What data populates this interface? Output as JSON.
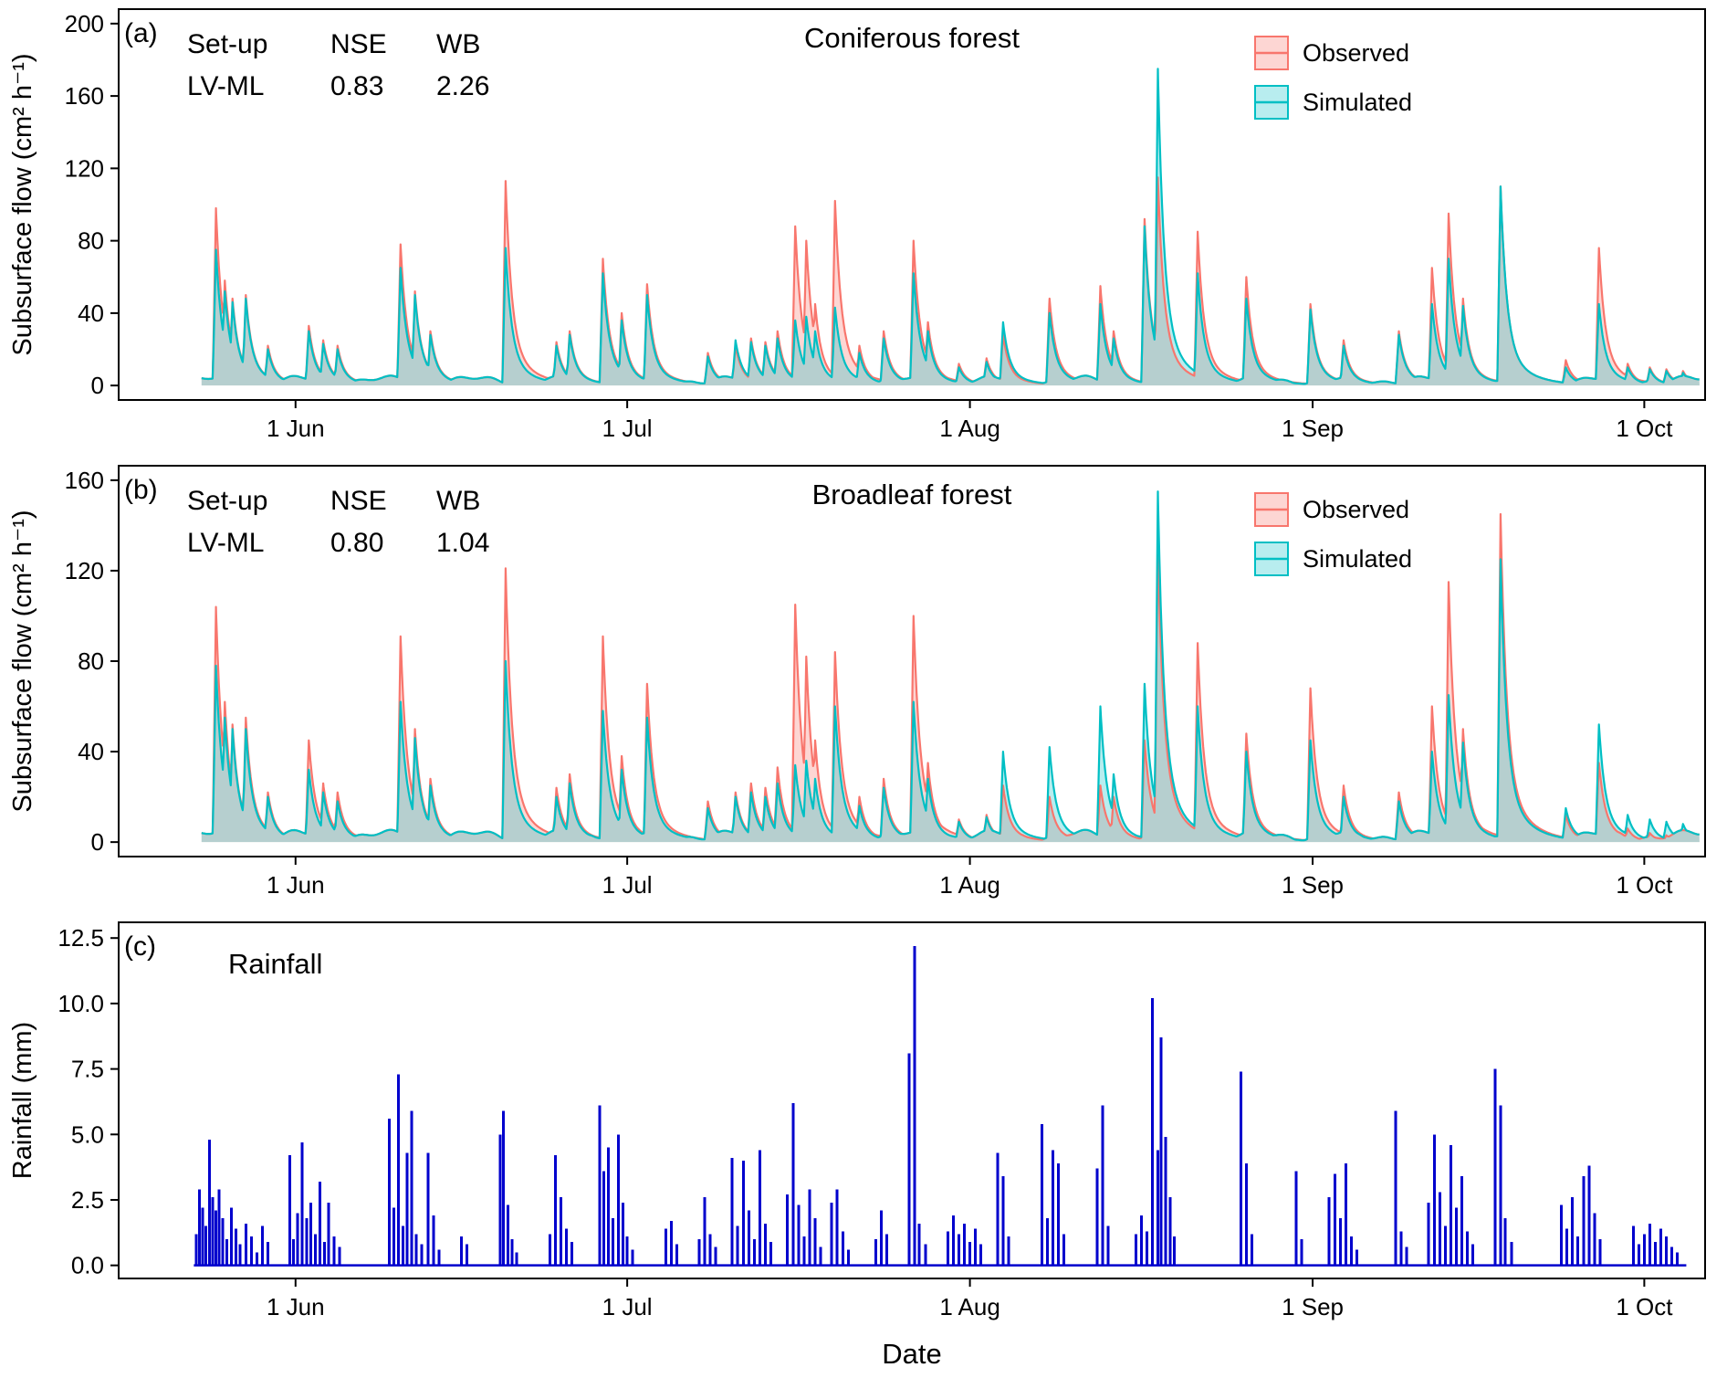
{
  "figure": {
    "background": "#ffffff"
  },
  "x_axis": {
    "domain": [
      0,
      143.5
    ],
    "tick_days": [
      16,
      46,
      77,
      108,
      138
    ],
    "tick_labels": [
      "1 Jun",
      "1 Jul",
      "1 Aug",
      "1 Sep",
      "1 Oct"
    ]
  },
  "colors": {
    "observed": "#F8766D",
    "observed_fill": "rgba(248,118,109,0.30)",
    "simulated": "#00BFC4",
    "simulated_fill": "rgba(0,191,196,0.28)",
    "rain": "#0000CD",
    "axis": "#000000"
  },
  "chart_data": [
    {
      "id": "a",
      "type": "line",
      "panel_label": "(a)",
      "title": "Coniferous forest",
      "ylabel": "Subsurface flow (cm² h⁻¹)",
      "ylim": [
        0,
        200
      ],
      "yticks": [
        0,
        40,
        80,
        120,
        160,
        200
      ],
      "stats_header": [
        "Set-up",
        "NSE",
        "WB"
      ],
      "stats_row": [
        "LV-ML",
        "0.83",
        "2.26"
      ],
      "legend": [
        {
          "name": "Observed",
          "color": "#F8766D",
          "fill": "rgba(248,118,109,0.30)"
        },
        {
          "name": "Simulated",
          "color": "#00BFC4",
          "fill": "rgba(0,191,196,0.28)"
        }
      ],
      "series_range": [
        7.5,
        143.0
      ],
      "events": [
        [
          8.8,
          98,
          75
        ],
        [
          9.6,
          58,
          52
        ],
        [
          10.3,
          48,
          46
        ],
        [
          11.5,
          50,
          48
        ],
        [
          13.5,
          22,
          20
        ],
        [
          17.2,
          33,
          30
        ],
        [
          18.5,
          25,
          23
        ],
        [
          19.8,
          22,
          20
        ],
        [
          25.5,
          78,
          65
        ],
        [
          26.8,
          52,
          50
        ],
        [
          28.2,
          30,
          28
        ],
        [
          35.0,
          113,
          76
        ],
        [
          39.6,
          24,
          22
        ],
        [
          40.8,
          30,
          28
        ],
        [
          43.8,
          70,
          62
        ],
        [
          45.5,
          40,
          36
        ],
        [
          47.8,
          56,
          50
        ],
        [
          53.3,
          18,
          16
        ],
        [
          55.8,
          22,
          25
        ],
        [
          57.2,
          26,
          24
        ],
        [
          58.5,
          24,
          22
        ],
        [
          59.6,
          30,
          26
        ],
        [
          61.2,
          88,
          36
        ],
        [
          62.2,
          80,
          38
        ],
        [
          63.0,
          45,
          30
        ],
        [
          64.8,
          102,
          43
        ],
        [
          67.0,
          22,
          18
        ],
        [
          69.2,
          30,
          26
        ],
        [
          71.9,
          80,
          62
        ],
        [
          73.2,
          35,
          30
        ],
        [
          76.0,
          12,
          10
        ],
        [
          78.5,
          15,
          13
        ],
        [
          80.0,
          28,
          35
        ],
        [
          84.2,
          48,
          40
        ],
        [
          88.8,
          55,
          45
        ],
        [
          90.0,
          30,
          26
        ],
        [
          92.8,
          92,
          88
        ],
        [
          94.0,
          115,
          175
        ],
        [
          97.6,
          85,
          62
        ],
        [
          102.0,
          60,
          48
        ],
        [
          107.8,
          45,
          42
        ],
        [
          110.8,
          25,
          22
        ],
        [
          115.8,
          30,
          28
        ],
        [
          118.8,
          65,
          45
        ],
        [
          120.3,
          95,
          70
        ],
        [
          121.6,
          48,
          44
        ],
        [
          125.0,
          110,
          110
        ],
        [
          130.9,
          14,
          10
        ],
        [
          133.9,
          76,
          45
        ],
        [
          136.5,
          12,
          10
        ],
        [
          138.5,
          10,
          9
        ],
        [
          140.0,
          9,
          8
        ],
        [
          141.5,
          8,
          7
        ]
      ]
    },
    {
      "id": "b",
      "type": "line",
      "panel_label": "(b)",
      "title": "Broadleaf forest",
      "ylabel": "Subsurface flow (cm² h⁻¹)",
      "ylim": [
        0,
        160
      ],
      "yticks": [
        0,
        40,
        80,
        120,
        160
      ],
      "stats_header": [
        "Set-up",
        "NSE",
        "WB"
      ],
      "stats_row": [
        "LV-ML",
        "0.80",
        "1.04"
      ],
      "legend": [
        {
          "name": "Observed",
          "color": "#F8766D",
          "fill": "rgba(248,118,109,0.30)"
        },
        {
          "name": "Simulated",
          "color": "#00BFC4",
          "fill": "rgba(0,191,196,0.28)"
        }
      ],
      "series_range": [
        7.5,
        143.0
      ],
      "events": [
        [
          8.8,
          104,
          78
        ],
        [
          9.6,
          62,
          55
        ],
        [
          10.3,
          52,
          50
        ],
        [
          11.5,
          55,
          50
        ],
        [
          13.5,
          22,
          20
        ],
        [
          17.2,
          45,
          32
        ],
        [
          18.5,
          26,
          22
        ],
        [
          19.8,
          22,
          18
        ],
        [
          25.5,
          91,
          62
        ],
        [
          26.8,
          50,
          46
        ],
        [
          28.2,
          28,
          25
        ],
        [
          35.0,
          121,
          80
        ],
        [
          39.6,
          24,
          20
        ],
        [
          40.8,
          30,
          26
        ],
        [
          43.8,
          91,
          58
        ],
        [
          45.5,
          38,
          32
        ],
        [
          47.8,
          70,
          55
        ],
        [
          53.3,
          18,
          15
        ],
        [
          55.8,
          22,
          20
        ],
        [
          57.2,
          26,
          22
        ],
        [
          58.5,
          24,
          20
        ],
        [
          59.6,
          33,
          26
        ],
        [
          61.2,
          105,
          34
        ],
        [
          62.2,
          82,
          36
        ],
        [
          63.0,
          45,
          28
        ],
        [
          64.8,
          84,
          60
        ],
        [
          67.0,
          20,
          16
        ],
        [
          69.2,
          28,
          24
        ],
        [
          71.9,
          100,
          62
        ],
        [
          73.2,
          35,
          28
        ],
        [
          76.0,
          10,
          9
        ],
        [
          78.5,
          12,
          11
        ],
        [
          80.0,
          25,
          40
        ],
        [
          84.2,
          20,
          42
        ],
        [
          88.8,
          25,
          60
        ],
        [
          90.0,
          20,
          30
        ],
        [
          92.8,
          45,
          70
        ],
        [
          94.0,
          130,
          155
        ],
        [
          97.6,
          88,
          60
        ],
        [
          102.0,
          48,
          40
        ],
        [
          107.8,
          68,
          45
        ],
        [
          110.8,
          25,
          20
        ],
        [
          115.8,
          22,
          18
        ],
        [
          118.8,
          60,
          40
        ],
        [
          120.3,
          115,
          65
        ],
        [
          121.6,
          50,
          44
        ],
        [
          125.0,
          145,
          125
        ],
        [
          130.9,
          12,
          15
        ],
        [
          133.9,
          35,
          52
        ],
        [
          136.5,
          6,
          12
        ],
        [
          138.5,
          4,
          10
        ],
        [
          140.0,
          3,
          9
        ],
        [
          141.5,
          3,
          8
        ]
      ]
    },
    {
      "id": "c",
      "type": "bar",
      "panel_label": "(c)",
      "title": "Rainfall",
      "ylabel": "Rainfall (mm)",
      "xlabel": "Date",
      "ylim": [
        0,
        12.5
      ],
      "yticks": [
        "0.0",
        "2.5",
        "5.0",
        "7.5",
        "10.0",
        "12.5"
      ],
      "bar_color": "#0000CD",
      "baseline_range": [
        6.8,
        141.8
      ],
      "bars": [
        [
          7.0,
          1.2
        ],
        [
          7.3,
          2.9
        ],
        [
          7.6,
          2.2
        ],
        [
          7.9,
          1.5
        ],
        [
          8.2,
          4.8
        ],
        [
          8.5,
          2.6
        ],
        [
          8.8,
          2.1
        ],
        [
          9.1,
          2.9
        ],
        [
          9.4,
          1.8
        ],
        [
          9.8,
          1.0
        ],
        [
          10.2,
          2.2
        ],
        [
          10.6,
          1.4
        ],
        [
          11.0,
          0.8
        ],
        [
          11.5,
          1.6
        ],
        [
          12.0,
          1.1
        ],
        [
          12.5,
          0.5
        ],
        [
          13.0,
          1.5
        ],
        [
          13.5,
          0.9
        ],
        [
          15.5,
          4.2
        ],
        [
          15.8,
          1.0
        ],
        [
          16.2,
          2.0
        ],
        [
          16.6,
          4.7
        ],
        [
          17.0,
          1.8
        ],
        [
          17.4,
          2.4
        ],
        [
          17.8,
          1.2
        ],
        [
          18.2,
          3.2
        ],
        [
          18.6,
          0.9
        ],
        [
          19.0,
          2.4
        ],
        [
          19.5,
          1.1
        ],
        [
          20.0,
          0.7
        ],
        [
          24.5,
          5.6
        ],
        [
          24.9,
          2.2
        ],
        [
          25.3,
          7.3
        ],
        [
          25.7,
          1.5
        ],
        [
          26.1,
          4.3
        ],
        [
          26.5,
          5.9
        ],
        [
          26.9,
          1.2
        ],
        [
          27.4,
          0.8
        ],
        [
          28.0,
          4.3
        ],
        [
          28.5,
          1.9
        ],
        [
          29.0,
          0.6
        ],
        [
          31.0,
          1.1
        ],
        [
          31.5,
          0.8
        ],
        [
          34.5,
          5.0
        ],
        [
          34.8,
          5.9
        ],
        [
          35.2,
          2.3
        ],
        [
          35.6,
          1.0
        ],
        [
          36.0,
          0.5
        ],
        [
          39.0,
          1.2
        ],
        [
          39.5,
          4.2
        ],
        [
          40.0,
          2.6
        ],
        [
          40.5,
          1.4
        ],
        [
          41.0,
          0.9
        ],
        [
          43.5,
          6.1
        ],
        [
          43.9,
          3.6
        ],
        [
          44.3,
          4.5
        ],
        [
          44.7,
          1.8
        ],
        [
          45.2,
          5.0
        ],
        [
          45.6,
          2.4
        ],
        [
          46.0,
          1.1
        ],
        [
          46.5,
          0.6
        ],
        [
          49.5,
          1.4
        ],
        [
          50.0,
          1.7
        ],
        [
          50.5,
          0.8
        ],
        [
          52.5,
          1.0
        ],
        [
          53.0,
          2.6
        ],
        [
          53.5,
          1.2
        ],
        [
          54.0,
          0.7
        ],
        [
          55.5,
          4.1
        ],
        [
          56.0,
          1.5
        ],
        [
          56.5,
          4.0
        ],
        [
          57.0,
          2.1
        ],
        [
          57.5,
          1.0
        ],
        [
          58.0,
          4.4
        ],
        [
          58.5,
          1.6
        ],
        [
          59.0,
          0.9
        ],
        [
          60.5,
          2.7
        ],
        [
          61.0,
          6.2
        ],
        [
          61.5,
          2.3
        ],
        [
          62.0,
          1.1
        ],
        [
          62.5,
          2.9
        ],
        [
          63.0,
          1.8
        ],
        [
          63.5,
          0.7
        ],
        [
          64.5,
          2.4
        ],
        [
          65.0,
          2.9
        ],
        [
          65.5,
          1.3
        ],
        [
          66.0,
          0.6
        ],
        [
          68.5,
          1.0
        ],
        [
          69.0,
          2.1
        ],
        [
          69.5,
          1.2
        ],
        [
          71.5,
          8.1
        ],
        [
          72.0,
          12.2
        ],
        [
          72.4,
          1.6
        ],
        [
          73.0,
          0.8
        ],
        [
          75.0,
          1.3
        ],
        [
          75.5,
          1.9
        ],
        [
          76.0,
          1.2
        ],
        [
          76.5,
          1.6
        ],
        [
          77.0,
          0.9
        ],
        [
          77.5,
          1.4
        ],
        [
          78.0,
          0.8
        ],
        [
          79.5,
          4.3
        ],
        [
          80.0,
          3.4
        ],
        [
          80.5,
          1.1
        ],
        [
          83.5,
          5.4
        ],
        [
          84.0,
          1.8
        ],
        [
          84.5,
          4.4
        ],
        [
          85.0,
          3.9
        ],
        [
          85.5,
          1.2
        ],
        [
          88.5,
          3.7
        ],
        [
          89.0,
          6.1
        ],
        [
          89.5,
          1.5
        ],
        [
          92.0,
          1.2
        ],
        [
          92.5,
          1.9
        ],
        [
          93.0,
          1.3
        ],
        [
          93.5,
          10.2
        ],
        [
          94.0,
          4.4
        ],
        [
          94.3,
          8.7
        ],
        [
          94.7,
          4.9
        ],
        [
          95.1,
          2.6
        ],
        [
          95.5,
          1.1
        ],
        [
          101.5,
          7.4
        ],
        [
          102.0,
          3.9
        ],
        [
          102.5,
          1.2
        ],
        [
          106.5,
          3.6
        ],
        [
          107.0,
          1.0
        ],
        [
          109.5,
          2.6
        ],
        [
          110.0,
          3.5
        ],
        [
          110.5,
          1.8
        ],
        [
          111.0,
          3.9
        ],
        [
          111.5,
          1.1
        ],
        [
          112.0,
          0.6
        ],
        [
          115.5,
          5.9
        ],
        [
          116.0,
          1.3
        ],
        [
          116.5,
          0.7
        ],
        [
          118.5,
          2.4
        ],
        [
          119.0,
          5.0
        ],
        [
          119.5,
          2.8
        ],
        [
          120.0,
          1.5
        ],
        [
          120.5,
          4.6
        ],
        [
          121.0,
          2.2
        ],
        [
          121.5,
          3.4
        ],
        [
          122.0,
          1.3
        ],
        [
          122.5,
          0.8
        ],
        [
          124.5,
          7.5
        ],
        [
          125.0,
          6.1
        ],
        [
          125.4,
          1.8
        ],
        [
          126.0,
          0.9
        ],
        [
          130.5,
          2.3
        ],
        [
          131.0,
          1.4
        ],
        [
          131.5,
          2.6
        ],
        [
          132.0,
          1.1
        ],
        [
          132.5,
          3.4
        ],
        [
          133.0,
          3.8
        ],
        [
          133.5,
          2.0
        ],
        [
          134.0,
          1.0
        ],
        [
          137.0,
          1.5
        ],
        [
          137.5,
          0.8
        ],
        [
          138.0,
          1.2
        ],
        [
          138.5,
          1.6
        ],
        [
          139.0,
          0.9
        ],
        [
          139.5,
          1.4
        ],
        [
          140.0,
          1.1
        ],
        [
          140.5,
          0.7
        ],
        [
          141.0,
          0.5
        ]
      ]
    }
  ]
}
